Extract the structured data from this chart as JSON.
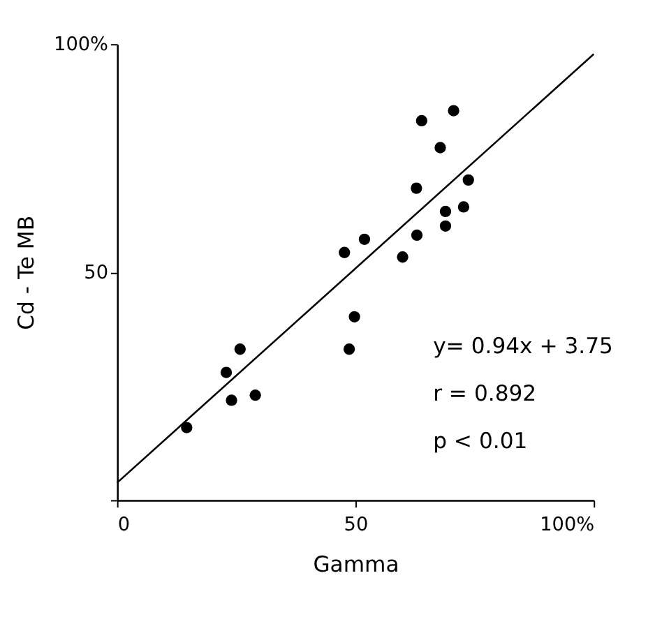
{
  "chart_data": {
    "type": "scatter",
    "xlabel": "Gamma",
    "ylabel": "Cd - Te MB",
    "xlim": [
      0,
      100
    ],
    "ylim": [
      0,
      100
    ],
    "xticks": [
      0,
      50,
      {
        "value": 100,
        "label": "100%"
      }
    ],
    "yticks": [
      {
        "value": 0,
        "label": null
      },
      50,
      {
        "value": 100,
        "label": "100%"
      }
    ],
    "grid": false,
    "series": [
      {
        "color": "#000000",
        "marker": "circle",
        "x": [
          14.6,
          22.9,
          24.0,
          25.8,
          29.0,
          47.7,
          48.7,
          49.8,
          51.9,
          59.9,
          62.9,
          62.8,
          63.9,
          67.8,
          68.9,
          68.9,
          70.6,
          72.7,
          73.7
        ],
        "values": [
          15.9,
          28.0,
          21.9,
          33.1,
          23.0,
          54.3,
          33.1,
          40.2,
          57.2,
          53.3,
          58.1,
          68.4,
          83.2,
          77.3,
          63.3,
          60.1,
          85.4,
          64.3,
          70.2
        ]
      },
      {
        "type": "line",
        "color": "#000000",
        "line_style": "solid",
        "x": [
          0,
          100
        ],
        "values": [
          3.8,
          97.8
        ]
      }
    ],
    "annotations": [
      "y= 0.94x + 3.75",
      "r = 0.892",
      "p < 0.01"
    ]
  }
}
